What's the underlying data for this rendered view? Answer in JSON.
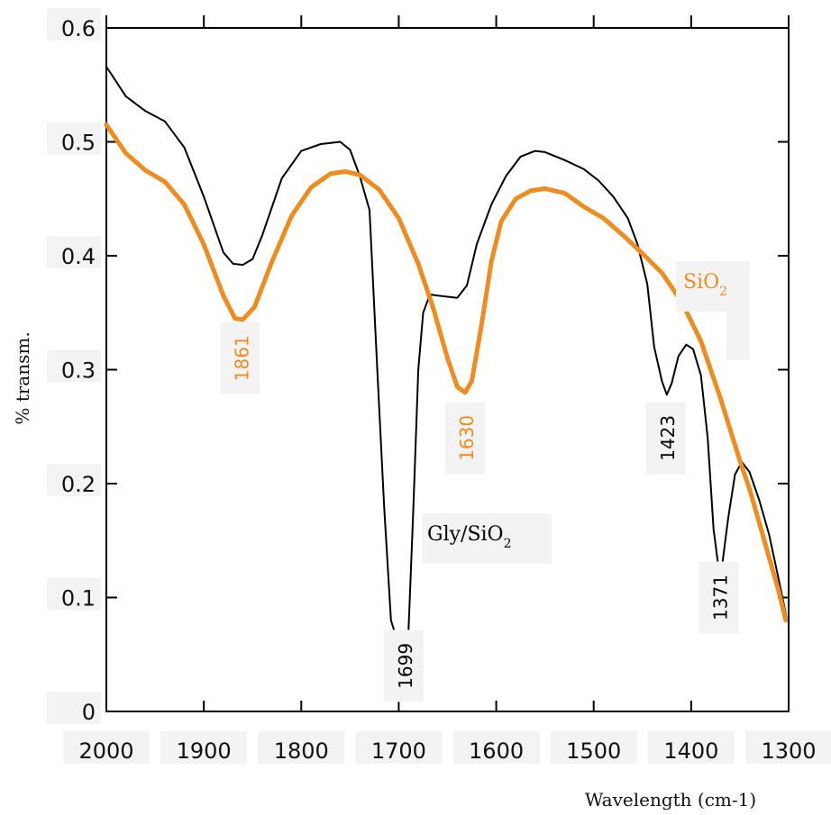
{
  "colors": {
    "gly": "#000000",
    "sio2": "#f08c1e",
    "axis": "#000000"
  },
  "chart_data": {
    "type": "line",
    "xlabel": "Wavelength (cm-1)",
    "ylabel": "% transm.",
    "xlim": [
      2000,
      1300
    ],
    "ylim": [
      0,
      0.6
    ],
    "x_reversed": true,
    "x_ticks": [
      "2000",
      "1900",
      "1800",
      "1700",
      "1600",
      "1500",
      "1400",
      "1300"
    ],
    "y_ticks": [
      "0",
      "0.1",
      "0.2",
      "0.3",
      "0.4",
      "0.5",
      "0.6"
    ],
    "grid": false,
    "series": [
      {
        "name_main": "Gly/SiO",
        "name_sub": "2",
        "color": "#000000",
        "points": [
          [
            2000,
            0.566
          ],
          [
            1980,
            0.54
          ],
          [
            1960,
            0.527
          ],
          [
            1940,
            0.518
          ],
          [
            1920,
            0.495
          ],
          [
            1900,
            0.452
          ],
          [
            1880,
            0.403
          ],
          [
            1870,
            0.393
          ],
          [
            1860,
            0.392
          ],
          [
            1850,
            0.397
          ],
          [
            1840,
            0.418
          ],
          [
            1820,
            0.468
          ],
          [
            1800,
            0.492
          ],
          [
            1780,
            0.498
          ],
          [
            1760,
            0.5
          ],
          [
            1750,
            0.493
          ],
          [
            1740,
            0.47
          ],
          [
            1730,
            0.44
          ],
          [
            1722,
            0.3
          ],
          [
            1715,
            0.18
          ],
          [
            1708,
            0.08
          ],
          [
            1700,
            0.058
          ],
          [
            1695,
            0.058
          ],
          [
            1690,
            0.07
          ],
          [
            1685,
            0.18
          ],
          [
            1680,
            0.3
          ],
          [
            1675,
            0.35
          ],
          [
            1668,
            0.366
          ],
          [
            1660,
            0.365
          ],
          [
            1650,
            0.364
          ],
          [
            1640,
            0.363
          ],
          [
            1630,
            0.374
          ],
          [
            1620,
            0.41
          ],
          [
            1605,
            0.445
          ],
          [
            1590,
            0.47
          ],
          [
            1575,
            0.487
          ],
          [
            1560,
            0.492
          ],
          [
            1550,
            0.491
          ],
          [
            1530,
            0.484
          ],
          [
            1510,
            0.476
          ],
          [
            1495,
            0.466
          ],
          [
            1480,
            0.452
          ],
          [
            1465,
            0.433
          ],
          [
            1455,
            0.41
          ],
          [
            1445,
            0.375
          ],
          [
            1438,
            0.32
          ],
          [
            1430,
            0.29
          ],
          [
            1425,
            0.278
          ],
          [
            1420,
            0.288
          ],
          [
            1413,
            0.312
          ],
          [
            1405,
            0.322
          ],
          [
            1398,
            0.318
          ],
          [
            1390,
            0.295
          ],
          [
            1383,
            0.24
          ],
          [
            1377,
            0.16
          ],
          [
            1372,
            0.127
          ],
          [
            1368,
            0.13
          ],
          [
            1362,
            0.17
          ],
          [
            1355,
            0.208
          ],
          [
            1348,
            0.219
          ],
          [
            1340,
            0.21
          ],
          [
            1330,
            0.185
          ],
          [
            1320,
            0.155
          ],
          [
            1310,
            0.115
          ],
          [
            1302,
            0.082
          ]
        ]
      },
      {
        "name_main": "SiO",
        "name_sub": "2",
        "color": "#f08c1e",
        "points": [
          [
            2000,
            0.515
          ],
          [
            1980,
            0.49
          ],
          [
            1960,
            0.475
          ],
          [
            1940,
            0.465
          ],
          [
            1920,
            0.445
          ],
          [
            1900,
            0.41
          ],
          [
            1880,
            0.365
          ],
          [
            1868,
            0.345
          ],
          [
            1860,
            0.344
          ],
          [
            1848,
            0.355
          ],
          [
            1830,
            0.395
          ],
          [
            1810,
            0.435
          ],
          [
            1790,
            0.46
          ],
          [
            1770,
            0.472
          ],
          [
            1755,
            0.474
          ],
          [
            1740,
            0.471
          ],
          [
            1720,
            0.458
          ],
          [
            1700,
            0.433
          ],
          [
            1680,
            0.393
          ],
          [
            1665,
            0.355
          ],
          [
            1650,
            0.31
          ],
          [
            1640,
            0.285
          ],
          [
            1632,
            0.28
          ],
          [
            1625,
            0.29
          ],
          [
            1615,
            0.34
          ],
          [
            1605,
            0.395
          ],
          [
            1595,
            0.43
          ],
          [
            1580,
            0.45
          ],
          [
            1565,
            0.457
          ],
          [
            1550,
            0.459
          ],
          [
            1530,
            0.455
          ],
          [
            1510,
            0.443
          ],
          [
            1490,
            0.433
          ],
          [
            1470,
            0.418
          ],
          [
            1450,
            0.402
          ],
          [
            1430,
            0.385
          ],
          [
            1410,
            0.36
          ],
          [
            1390,
            0.325
          ],
          [
            1370,
            0.275
          ],
          [
            1350,
            0.22
          ],
          [
            1340,
            0.195
          ],
          [
            1330,
            0.165
          ],
          [
            1320,
            0.135
          ],
          [
            1310,
            0.105
          ],
          [
            1303,
            0.08
          ]
        ]
      }
    ],
    "peak_labels": [
      {
        "text": "1861",
        "x": 1861,
        "y": 0.31,
        "color": "#f08c1e"
      },
      {
        "text": "1630",
        "x": 1630,
        "y": 0.24,
        "color": "#f08c1e"
      },
      {
        "text": "1699",
        "x": 1693,
        "y": 0.04,
        "color": "#000000"
      },
      {
        "text": "1423",
        "x": 1424,
        "y": 0.24,
        "color": "#000000"
      },
      {
        "text": "1371",
        "x": 1370,
        "y": 0.1,
        "color": "#000000"
      }
    ]
  }
}
